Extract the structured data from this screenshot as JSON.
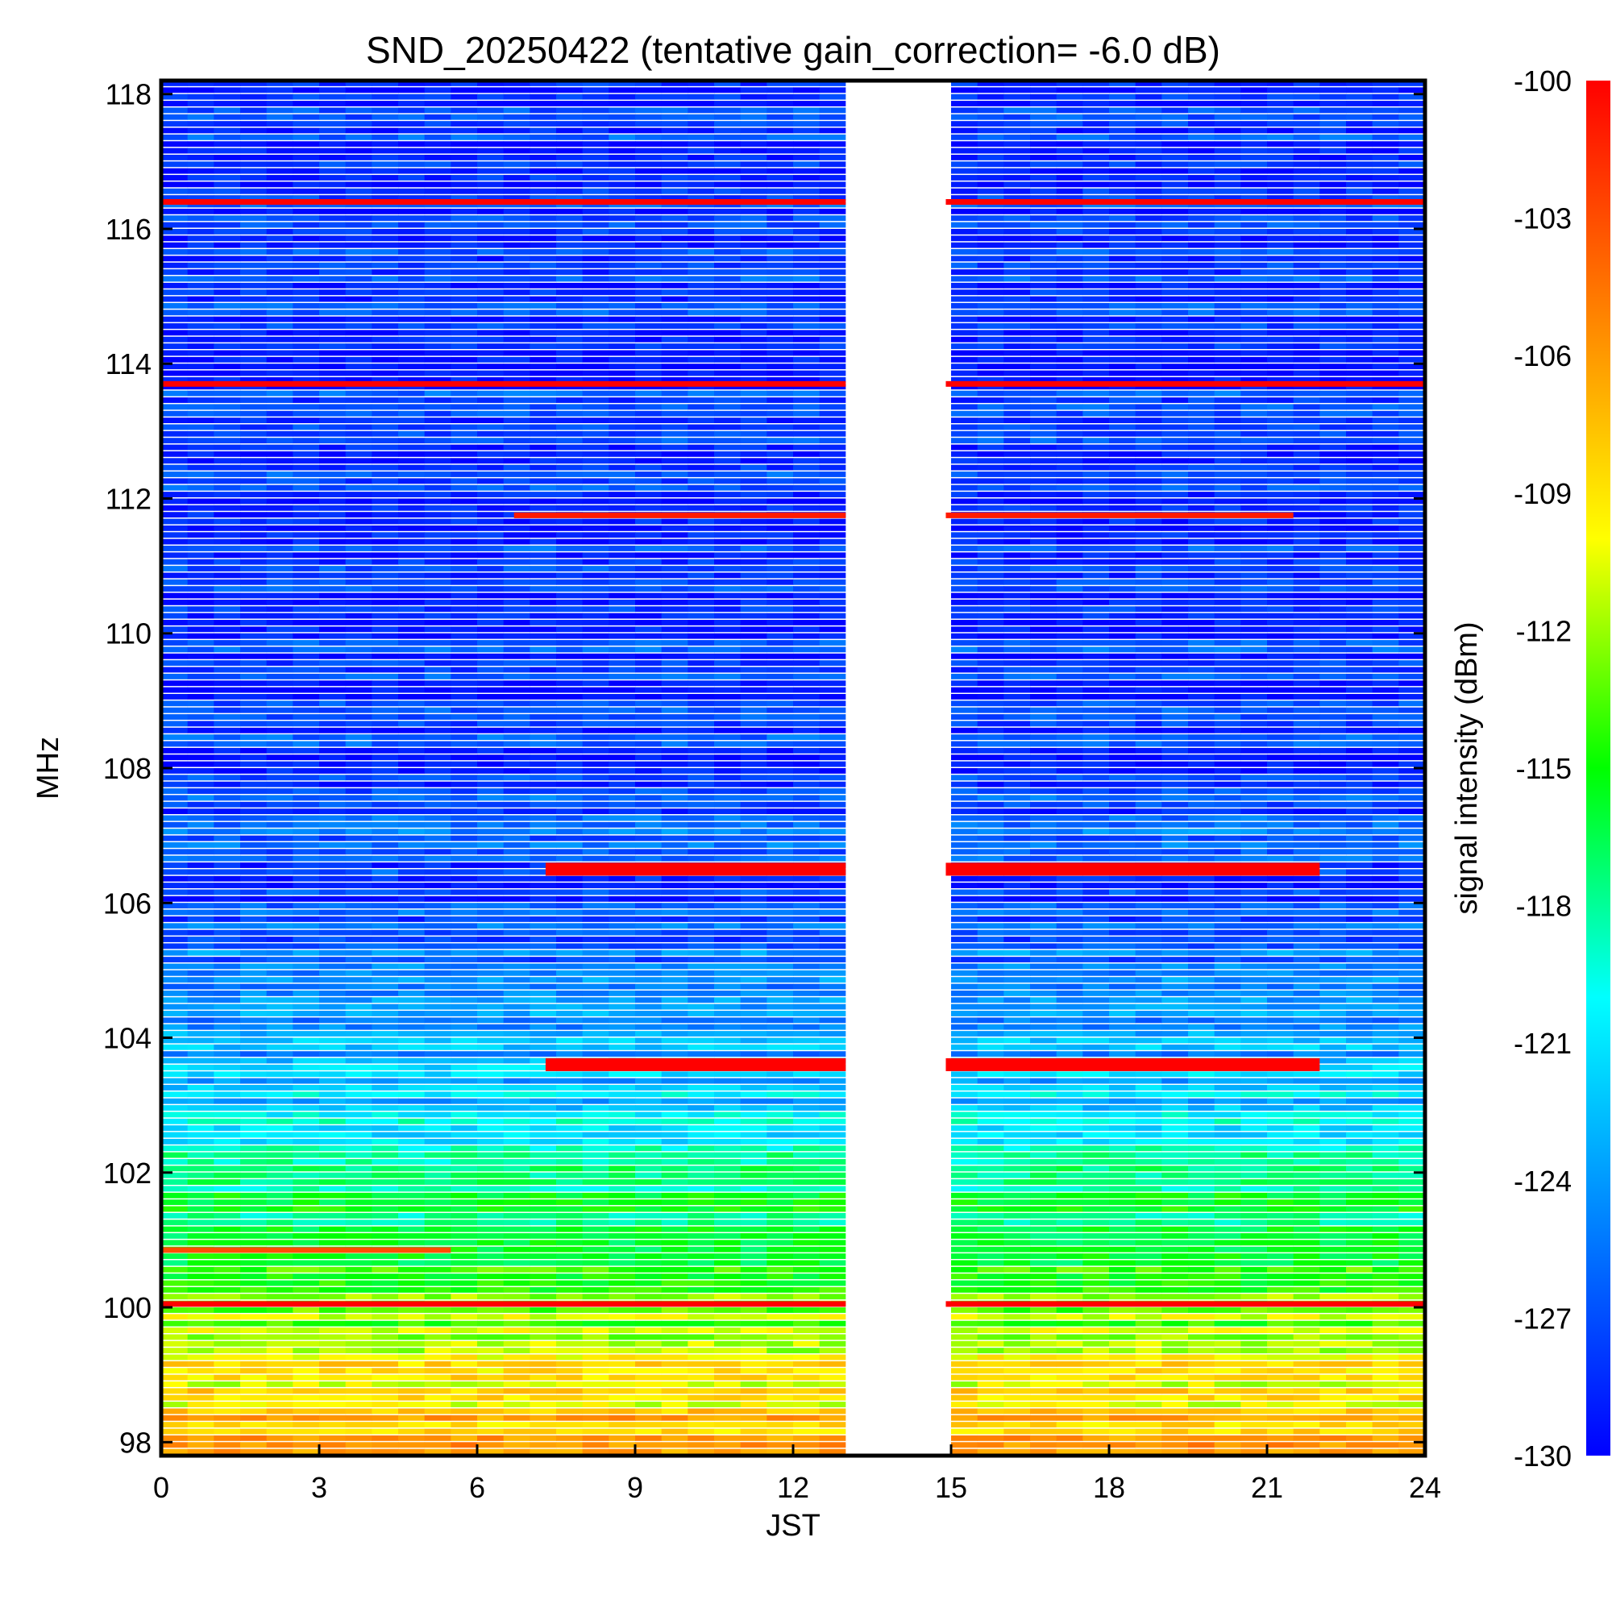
{
  "chart_data": {
    "type": "heatmap",
    "title": "SND_20250422 (tentative gain_correction= -6.0 dB)",
    "xlabel": "JST",
    "ylabel": "MHz",
    "colorbar_label": "signal intensity (dBm)",
    "xlim": [
      0,
      24
    ],
    "ylim": [
      97.8,
      118.2
    ],
    "x_ticks": [
      0,
      3,
      6,
      9,
      12,
      15,
      18,
      21,
      24
    ],
    "y_ticks": [
      98,
      100,
      102,
      104,
      106,
      108,
      110,
      112,
      114,
      116,
      118
    ],
    "colorbar_range": [
      -130,
      -100
    ],
    "colorbar_ticks": [
      -100,
      -103,
      -106,
      -109,
      -112,
      -115,
      -118,
      -121,
      -124,
      -127,
      -130
    ],
    "colormap": [
      "#0000ff",
      "#0080ff",
      "#00ffff",
      "#00ff00",
      "#ffff00",
      "#ff8000",
      "#ff0000"
    ],
    "data_gap_hours": [
      13,
      14.9
    ],
    "strong_signals_dBm": [
      {
        "freq_mhz": 116.4,
        "start": 0,
        "end": 24,
        "value": -100
      },
      {
        "freq_mhz": 113.7,
        "start": 0,
        "end": 24,
        "value": -100
      },
      {
        "freq_mhz": 111.75,
        "start": 6.7,
        "end": 21.5,
        "value": -101
      },
      {
        "freq_mhz": 106.5,
        "start": 7.3,
        "end": 22.0,
        "value": -100
      },
      {
        "freq_mhz": 103.6,
        "start": 7.3,
        "end": 22.0,
        "value": -100
      },
      {
        "freq_mhz": 100.05,
        "start": 0,
        "end": 24,
        "value": -100
      },
      {
        "freq_mhz": 100.85,
        "start": 0,
        "end": 5.5,
        "value": -103
      }
    ],
    "background_profile_dBm": [
      {
        "freq_mhz": 98,
        "value": -107
      },
      {
        "freq_mhz": 99,
        "value": -110
      },
      {
        "freq_mhz": 100,
        "value": -113
      },
      {
        "freq_mhz": 101,
        "value": -116
      },
      {
        "freq_mhz": 102,
        "value": -118
      },
      {
        "freq_mhz": 103,
        "value": -122
      },
      {
        "freq_mhz": 104,
        "value": -124
      },
      {
        "freq_mhz": 105,
        "value": -125
      },
      {
        "freq_mhz": 106,
        "value": -128
      },
      {
        "freq_mhz": 107,
        "value": -126
      },
      {
        "freq_mhz": 108,
        "value": -128
      },
      {
        "freq_mhz": 112,
        "value": -128
      },
      {
        "freq_mhz": 118,
        "value": -128
      }
    ]
  }
}
